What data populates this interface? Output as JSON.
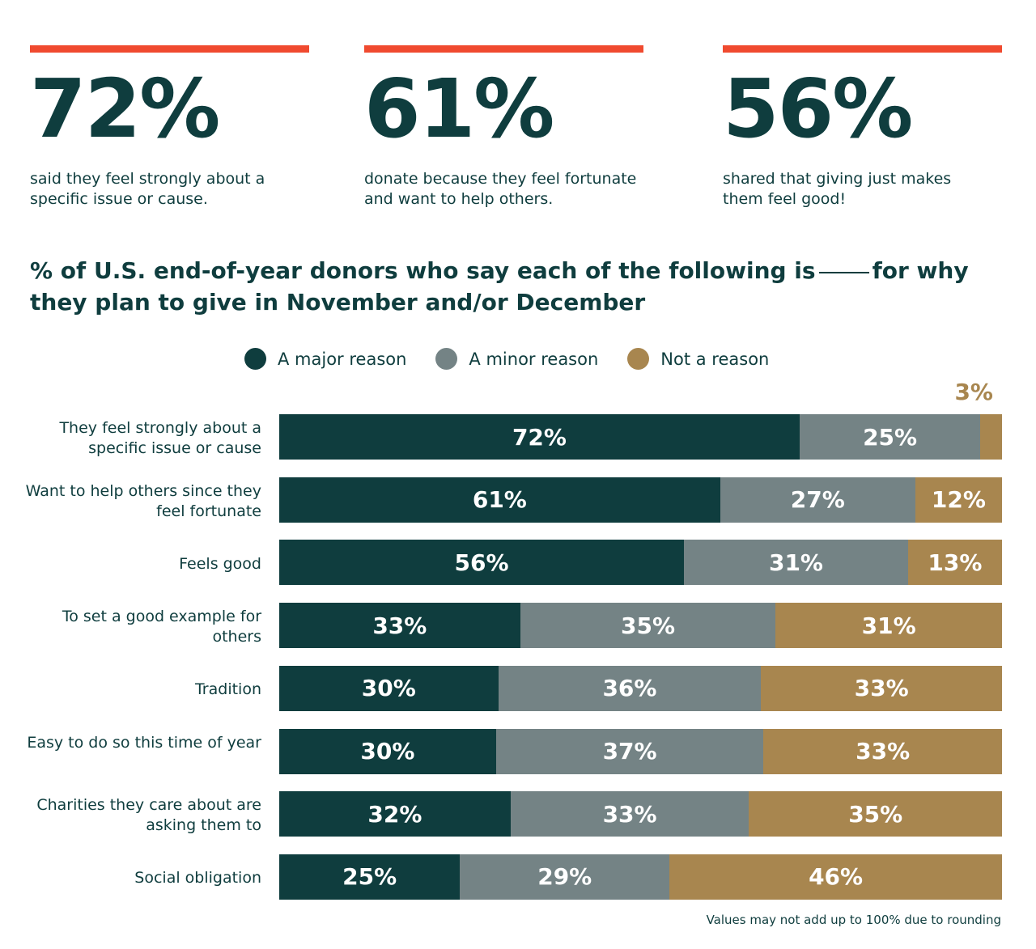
{
  "stats": [
    {
      "value": "72%",
      "text": "said they feel strongly about a specific issue or cause."
    },
    {
      "value": "61%",
      "text": "donate because they feel fortunate and want to help others."
    },
    {
      "value": "56%",
      "text": "shared that giving just makes them feel good!"
    }
  ],
  "colors": {
    "accent": "#f04a2f",
    "major": "#0f3d3e",
    "minor": "#748385",
    "not": "#a8864f"
  },
  "chart_data": {
    "type": "bar",
    "orientation": "horizontal",
    "stacked": true,
    "title_before_blank": "% of U.S. end-of-year donors who say each of the following is",
    "title_after_blank": "for why they plan to give in November and/or December",
    "categories": [
      "They feel strongly about a specific issue or cause",
      "Want to help others since they feel fortunate",
      "Feels good",
      "To set a good example for others",
      "Tradition",
      "Easy to do so this time of year",
      "Charities they care about are asking them to",
      "Social obligation"
    ],
    "series": [
      {
        "name": "A major reason",
        "color": "#0f3d3e",
        "values": [
          72,
          61,
          56,
          33,
          30,
          30,
          32,
          25
        ]
      },
      {
        "name": "A minor reason",
        "color": "#748385",
        "values": [
          25,
          27,
          31,
          35,
          36,
          37,
          33,
          29
        ]
      },
      {
        "name": "Not a reason",
        "color": "#a8864f",
        "values": [
          3,
          12,
          13,
          31,
          33,
          33,
          35,
          46
        ]
      }
    ],
    "value_suffix": "%",
    "legend_position": "top",
    "note": "Values may not add up to 100% due to rounding"
  }
}
